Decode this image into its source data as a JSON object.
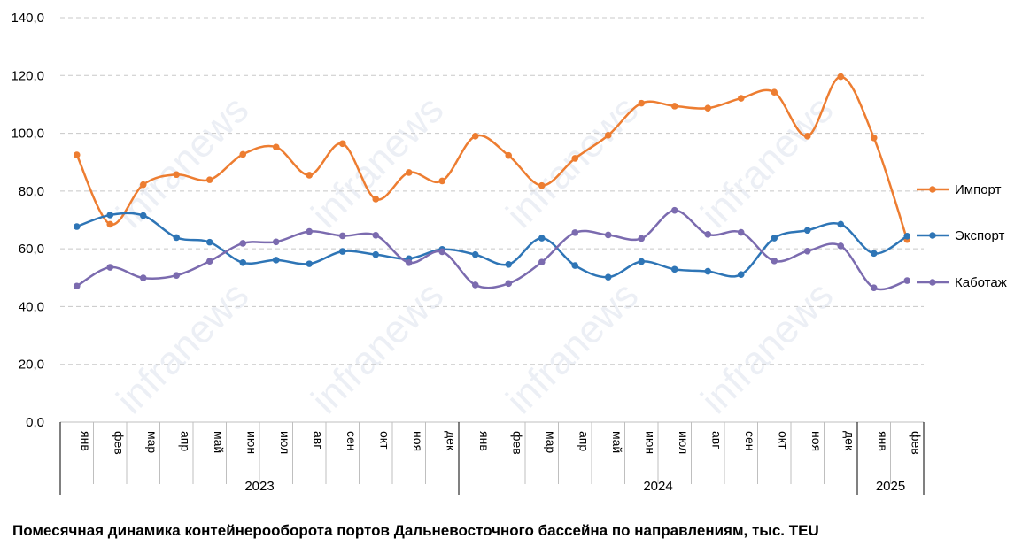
{
  "chart_data": {
    "type": "line",
    "title": "",
    "caption": "Помесячная динамика контейнерооборота портов Дальневосточного бассейна по направлениям, тыс. TEU",
    "watermark": "infranews",
    "ylim": [
      0,
      140
    ],
    "yticks": [
      "0,0",
      "20,0",
      "40,0",
      "60,0",
      "80,0",
      "100,0",
      "120,0",
      "140,0"
    ],
    "yticks_values": [
      0,
      20,
      40,
      60,
      80,
      100,
      120,
      140
    ],
    "grid": true,
    "legend_position": "right",
    "categories": [
      "янв",
      "фев",
      "мар",
      "апр",
      "май",
      "июн",
      "июл",
      "авг",
      "сен",
      "окт",
      "ноя",
      "дек",
      "янв",
      "фев",
      "мар",
      "апр",
      "май",
      "июн",
      "июл",
      "авг",
      "сен",
      "окт",
      "ноя",
      "дек",
      "янв",
      "фев"
    ],
    "years": [
      {
        "label": "2023",
        "count": 12
      },
      {
        "label": "2024",
        "count": 12
      },
      {
        "label": "2025",
        "count": 2
      }
    ],
    "series": [
      {
        "name": "Импорт",
        "color": "#ED7D31",
        "values": [
          92.5,
          68.5,
          82.2,
          85.7,
          83.9,
          92.7,
          95.2,
          85.5,
          96.4,
          77.2,
          86.4,
          83.5,
          99.0,
          92.3,
          81.9,
          91.3,
          99.3,
          110.4,
          109.4,
          108.7,
          112.1,
          114.2,
          99.0,
          119.6,
          98.4,
          63.2
        ]
      },
      {
        "name": "Экспорт",
        "color": "#2E75B6",
        "values": [
          67.7,
          71.7,
          71.5,
          63.9,
          62.3,
          55.2,
          56.1,
          54.8,
          59.1,
          58.0,
          56.6,
          59.8,
          58.0,
          54.6,
          63.7,
          54.2,
          50.2,
          55.6,
          52.9,
          52.2,
          51.1,
          63.7,
          66.4,
          68.5,
          58.4,
          64.4
        ]
      },
      {
        "name": "Каботаж",
        "color": "#7B6BAF",
        "values": [
          47.1,
          53.6,
          49.9,
          50.8,
          55.7,
          61.9,
          62.4,
          66.0,
          64.5,
          64.7,
          55.2,
          59.0,
          47.5,
          48.0,
          55.4,
          65.6,
          64.8,
          63.6,
          73.3,
          65.0,
          65.7,
          55.8,
          59.2,
          61.0,
          46.5,
          49.0
        ]
      }
    ]
  }
}
